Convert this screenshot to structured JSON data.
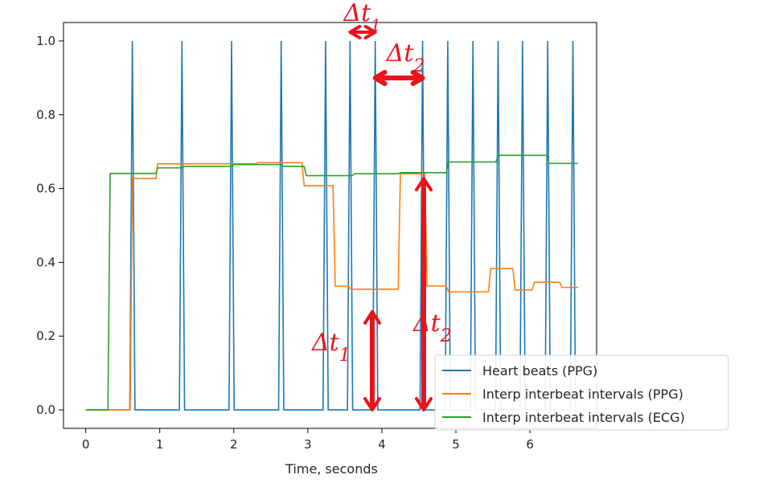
{
  "chart_data": {
    "type": "line",
    "title": "",
    "xlabel": "Time, seconds",
    "ylabel": "",
    "xlim": [
      -0.3,
      6.9
    ],
    "ylim": [
      -0.05,
      1.05
    ],
    "xticks": [
      0,
      1,
      2,
      3,
      4,
      5,
      6
    ],
    "yticks": [
      0.0,
      0.2,
      0.4,
      0.6,
      0.8,
      1.0
    ],
    "xtick_labels": [
      "0",
      "1",
      "2",
      "3",
      "4",
      "5",
      "6"
    ],
    "ytick_labels": [
      "0.0",
      "0.2",
      "0.4",
      "0.6",
      "0.8",
      "1.0"
    ],
    "grid": false,
    "legend_position": "lower-right",
    "beat_times": [
      0.63,
      1.3,
      1.97,
      2.64,
      3.24,
      3.57,
      3.91,
      4.55,
      4.89,
      5.23,
      5.57,
      5.9,
      6.24,
      6.58
    ],
    "series": [
      {
        "name": "Heart beats (PPG)",
        "color": "#1f77b4",
        "style": "spikes",
        "x": [
          0.63,
          1.3,
          1.97,
          2.64,
          3.24,
          3.57,
          3.91,
          4.55,
          4.89,
          5.23,
          5.57,
          5.9,
          6.24,
          6.58
        ],
        "y": [
          1,
          1,
          1,
          1,
          1,
          1,
          1,
          1,
          1,
          1,
          1,
          1,
          1,
          1
        ],
        "start": 0,
        "end": 6.6
      },
      {
        "name": "Interp interbeat intervals (PPG)",
        "color": "#ff7f0e",
        "style": "line",
        "x": [
          0.0,
          0.6,
          0.63,
          0.95,
          0.97,
          1.3,
          1.33,
          1.97,
          2.0,
          2.3,
          2.33,
          2.92,
          2.95,
          3.34,
          3.37,
          3.55,
          3.58,
          3.87,
          3.9,
          4.22,
          4.25,
          4.58,
          4.61,
          4.87,
          4.9,
          5.2,
          5.23,
          5.44,
          5.47,
          5.77,
          5.8,
          6.03,
          6.06,
          6.4,
          6.43,
          6.65
        ],
        "y": [
          0.0,
          0.0,
          0.627,
          0.627,
          0.667,
          0.667,
          0.667,
          0.667,
          0.667,
          0.667,
          0.67,
          0.67,
          0.608,
          0.608,
          0.335,
          0.335,
          0.327,
          0.327,
          0.327,
          0.327,
          0.64,
          0.64,
          0.336,
          0.336,
          0.32,
          0.32,
          0.32,
          0.32,
          0.383,
          0.383,
          0.325,
          0.325,
          0.346,
          0.346,
          0.332,
          0.332
        ]
      },
      {
        "name": "Interp interbeat intervals (ECG)",
        "color": "#2ca02c",
        "style": "line",
        "x": [
          0.0,
          0.3,
          0.33,
          0.95,
          0.97,
          1.3,
          1.33,
          1.97,
          2.0,
          2.64,
          2.67,
          2.95,
          2.98,
          3.6,
          3.63,
          4.22,
          4.25,
          4.87,
          4.9,
          5.2,
          5.23,
          5.54,
          5.57,
          5.9,
          5.93,
          6.23,
          6.26,
          6.65
        ],
        "y": [
          0.0,
          0.0,
          0.641,
          0.641,
          0.656,
          0.656,
          0.66,
          0.66,
          0.665,
          0.665,
          0.66,
          0.66,
          0.635,
          0.635,
          0.64,
          0.64,
          0.643,
          0.643,
          0.672,
          0.672,
          0.672,
          0.672,
          0.69,
          0.69,
          0.69,
          0.69,
          0.668,
          0.668
        ]
      }
    ]
  },
  "annotations": {
    "color": "#e8141b",
    "labels": [
      "Δt1",
      "Δt2",
      "Δt1",
      "Δt2"
    ],
    "arrows": [
      {
        "kind": "horizontal",
        "from_beat": 5,
        "to_beat": 6
      },
      {
        "kind": "horizontal",
        "from_beat": 6,
        "to_beat": 7
      },
      {
        "kind": "vertical",
        "at_x": 3.87,
        "from_y": 0.0,
        "to_y": 0.327
      },
      {
        "kind": "vertical",
        "at_x": 4.5,
        "from_y": 0.0,
        "to_y": 0.64
      }
    ]
  }
}
